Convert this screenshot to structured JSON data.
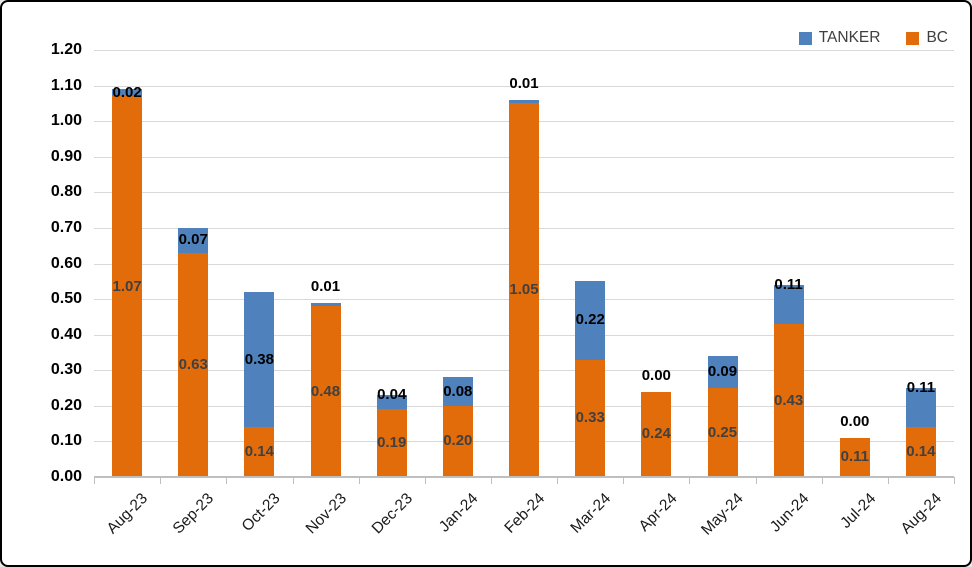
{
  "window": {
    "background": "#FFFFFF",
    "border_color": "#000000"
  },
  "legend": {
    "position": "top-right",
    "items": [
      {
        "label": "TANKER",
        "color": "#4F81BD"
      },
      {
        "label": "BC",
        "color": "#E36C0A"
      }
    ]
  },
  "chart_data": {
    "type": "bar",
    "stacked": true,
    "title": "",
    "xlabel": "",
    "ylabel": "",
    "categories": [
      "Aug-23",
      "Sep-23",
      "Oct-23",
      "Nov-23",
      "Dec-23",
      "Jan-24",
      "Feb-24",
      "Mar-24",
      "Apr-24",
      "May-24",
      "Jun-24",
      "Jul-24",
      "Aug-24"
    ],
    "series": [
      {
        "name": "BC",
        "color": "#E36C0A",
        "label_color": "#404040",
        "values": [
          1.07,
          0.63,
          0.14,
          0.48,
          0.19,
          0.2,
          1.05,
          0.33,
          0.24,
          0.25,
          0.43,
          0.11,
          0.14
        ],
        "labels": [
          "1.07",
          "0.63",
          "0.14",
          "0.48",
          "0.19",
          "0.20",
          "1.05",
          "0.33",
          "0.24",
          "0.25",
          "0.43",
          "0.11",
          "0.14"
        ],
        "label_placement": [
          "center",
          "center",
          "center",
          "center",
          "center",
          "center",
          "center",
          "center",
          "center",
          "center",
          "center",
          "center",
          "center"
        ]
      },
      {
        "name": "TANKER",
        "color": "#4F81BD",
        "label_color": "#000000",
        "values": [
          0.02,
          0.07,
          0.38,
          0.01,
          0.04,
          0.08,
          0.01,
          0.22,
          0.0,
          0.09,
          0.11,
          0.0,
          0.11
        ],
        "labels": [
          "0.02",
          "0.07",
          "0.38",
          "0.01",
          "0.04",
          "0.08",
          "0.01",
          "0.22",
          "0.00",
          "0.09",
          "0.11",
          "0.00",
          "0.11"
        ],
        "label_placement": [
          "center",
          "center",
          "center",
          "above",
          "top",
          "center",
          "above",
          "center",
          "above",
          "center",
          "top",
          "above",
          "top"
        ]
      }
    ],
    "ylim": [
      0.0,
      1.2
    ],
    "y_tick_step": 0.1,
    "y_tick_labels": [
      "0.00",
      "0.10",
      "0.20",
      "0.30",
      "0.40",
      "0.50",
      "0.60",
      "0.70",
      "0.80",
      "0.90",
      "1.00",
      "1.10",
      "1.20"
    ],
    "grid": true,
    "gridline_color": "#D9D9D9",
    "axis_line_color": "#BFBFBF",
    "legend_position": "top-right"
  }
}
